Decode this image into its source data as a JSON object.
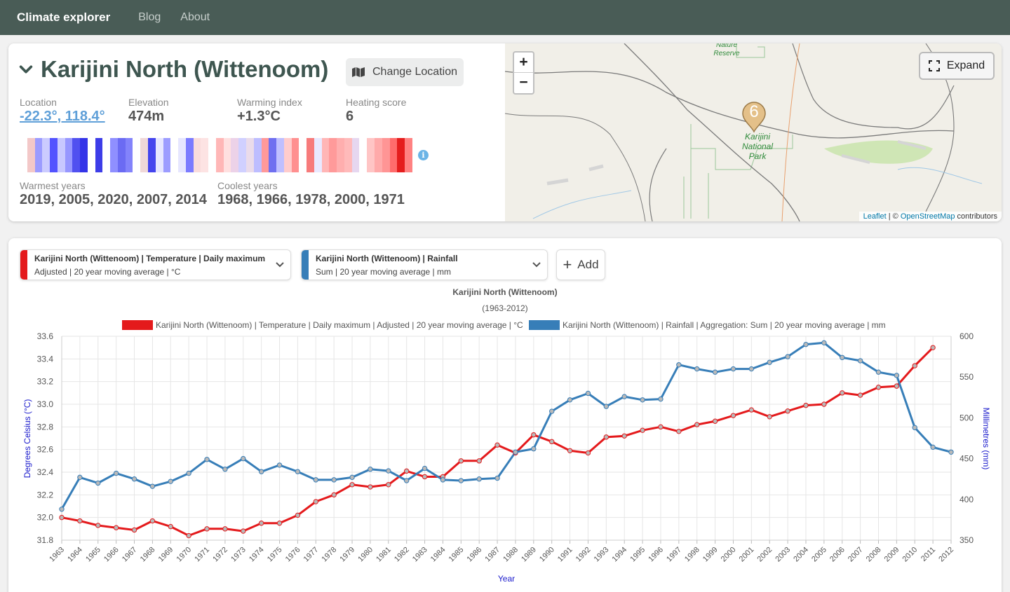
{
  "navbar": {
    "brand": "Climate explorer",
    "links": [
      "Blog",
      "About"
    ]
  },
  "location": {
    "title": "Karijini North (Wittenoom)",
    "change_label": "Change Location",
    "stats": [
      {
        "label": "Location",
        "value": "-22.3°, 118.4°"
      },
      {
        "label": "Elevation",
        "value": "474m"
      },
      {
        "label": "Warming index",
        "value": "+1.3°C"
      },
      {
        "label": "Heating score",
        "value": "6"
      }
    ],
    "stripe_colors": [
      "#ffffff",
      "#f3c8c8",
      "#9b9bff",
      "#cbcbff",
      "#5252ff",
      "#c8c8ff",
      "#9797ff",
      "#5151f0",
      "#3434e8",
      "#ffffff",
      "#3d3de8",
      "#ffffff",
      "#8f8fff",
      "#6b6bf3",
      "#8383fb",
      "#ffffff",
      "#f0d8d8",
      "#4444ee",
      "#e6e6ff",
      "#9c9cff",
      "#ffffff",
      "#e6e6ff",
      "#7b7bff",
      "#fadcdc",
      "#fde3e3",
      "#ffffff",
      "#ffb7b7",
      "#ffe0e0",
      "#ecd2e8",
      "#d0d0ff",
      "#eadbea",
      "#bdbdff",
      "#ff9999",
      "#6f6ff0",
      "#bfbfff",
      "#ffcccc",
      "#ff9090",
      "#ffffff",
      "#f77b7b",
      "#e9e9ff",
      "#ffb6b6",
      "#ff9a9a",
      "#ffaeae",
      "#ffbaba",
      "#e6d7f0",
      "#ffffff",
      "#ffc5c5",
      "#ffaaaa",
      "#ff9595",
      "#ff6c6c",
      "#e51d1d",
      "#ff8282"
    ],
    "warmest_label": "Warmest years",
    "warmest_value": "2019, 2005, 2020, 2007, 2014",
    "coolest_label": "Coolest years",
    "coolest_value": "1968, 1966, 1978, 2000, 1971"
  },
  "map": {
    "zoom_in": "+",
    "zoom_out": "−",
    "expand_label": "Expand",
    "marker_count": "6",
    "labels": {
      "nature_reserve": "Nature Reserve",
      "park": "Karijini National Park"
    },
    "attribution_leaflet": "Leaflet",
    "attribution_sep": " | © ",
    "attribution_osm": "OpenStreetMap",
    "attribution_tail": " contributors"
  },
  "series_selectors": [
    {
      "line1": "Karijini North (Wittenoom) | Temperature | Daily maximum",
      "line2": "Adjusted | 20 year moving average | °C",
      "color": "#e41a1c"
    },
    {
      "line1": "Karijini North (Wittenoom) | Rainfall",
      "line2": "Sum | 20 year moving average | mm",
      "color": "#377eb8"
    }
  ],
  "add_label": "Add",
  "chart_data": {
    "type": "line",
    "title": "Karijini North (Wittenoom)",
    "subtitle": "(1963-2012)",
    "xlabel": "Year",
    "ylabel_left": "Degrees Celsius (°C)",
    "ylabel_right": "Millimetres (mm)",
    "x": [
      1963,
      1964,
      1965,
      1966,
      1967,
      1968,
      1969,
      1970,
      1971,
      1972,
      1973,
      1974,
      1975,
      1976,
      1977,
      1978,
      1979,
      1980,
      1981,
      1982,
      1983,
      1984,
      1985,
      1986,
      1987,
      1988,
      1989,
      1990,
      1991,
      1992,
      1993,
      1994,
      1995,
      1996,
      1997,
      1998,
      1999,
      2000,
      2001,
      2002,
      2003,
      2004,
      2005,
      2006,
      2007,
      2008,
      2009,
      2010,
      2011,
      2012
    ],
    "ylim_left": [
      31.8,
      33.6
    ],
    "yticks_left": [
      31.8,
      32.0,
      32.2,
      32.4,
      32.6,
      32.8,
      33.0,
      33.2,
      33.4,
      33.6
    ],
    "ylim_right": [
      350,
      600
    ],
    "yticks_right": [
      350,
      400,
      450,
      500,
      550,
      600
    ],
    "grid": true,
    "legend_position": "top",
    "series": [
      {
        "name": "Karijini North (Wittenoom) | Temperature | Daily maximum | Adjusted | 20 year moving average | °C",
        "color": "#e41a1c",
        "axis": "left",
        "values": [
          32.0,
          31.97,
          31.93,
          31.91,
          31.89,
          31.97,
          31.92,
          31.84,
          31.9,
          31.9,
          31.88,
          31.95,
          31.95,
          32.02,
          32.14,
          32.2,
          32.29,
          32.27,
          32.29,
          32.41,
          32.36,
          32.36,
          32.5,
          32.5,
          32.64,
          32.57,
          32.73,
          32.67,
          32.59,
          32.57,
          32.71,
          32.72,
          32.77,
          32.8,
          32.76,
          32.82,
          32.85,
          32.9,
          32.95,
          32.89,
          32.94,
          32.99,
          33.0,
          33.1,
          33.08,
          33.15,
          33.16,
          33.34,
          33.5,
          null
        ]
      },
      {
        "name": "Karijini North (Wittenoom) | Rainfall | Aggregation: Sum | 20 year moving average | mm",
        "color": "#377eb8",
        "axis": "right",
        "values": [
          388,
          427,
          420,
          432,
          425,
          416,
          422,
          432,
          449,
          437,
          450,
          434,
          442,
          434,
          424,
          424,
          427,
          437,
          435,
          423,
          438,
          424,
          423,
          425,
          426,
          458,
          462,
          508,
          522,
          530,
          514,
          526,
          522,
          523,
          565,
          560,
          556,
          560,
          560,
          568,
          575,
          590,
          592,
          574,
          570,
          556,
          552,
          488,
          464,
          458
        ]
      }
    ]
  }
}
